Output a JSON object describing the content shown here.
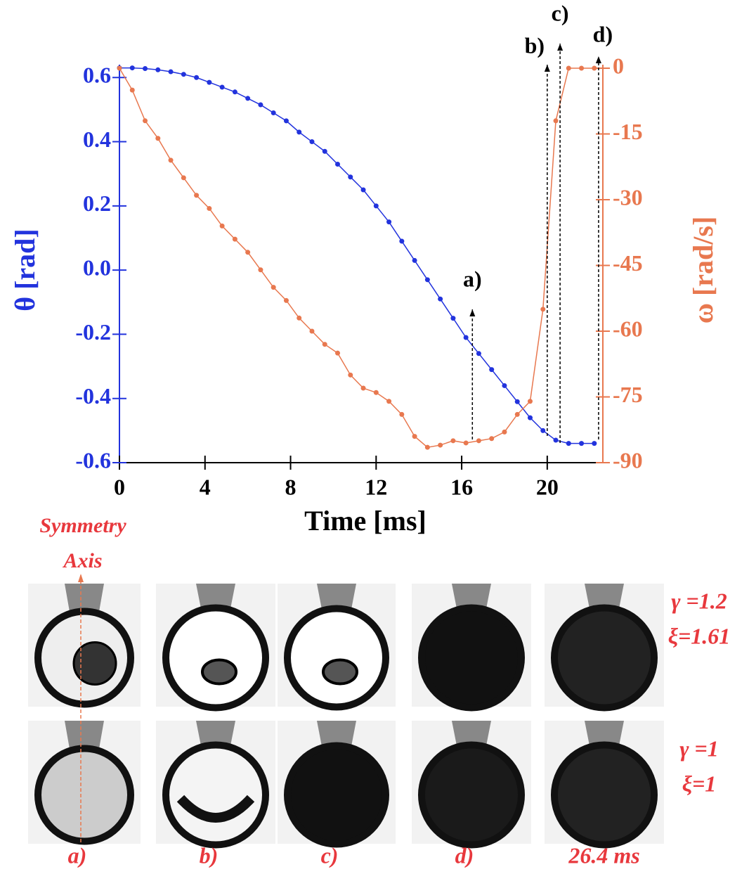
{
  "chart_data": {
    "type": "line",
    "x_label": "Time [ms]",
    "y_label": "θ [rad]",
    "y2_label": "ω [rad/s]",
    "x": [
      0,
      0.6,
      1.2,
      1.8,
      2.4,
      3.0,
      3.6,
      4.2,
      4.8,
      5.4,
      6.0,
      6.6,
      7.2,
      7.8,
      8.4,
      9.0,
      9.6,
      10.2,
      10.8,
      11.4,
      12.0,
      12.6,
      13.2,
      13.8,
      14.4,
      15.0,
      15.6,
      16.2,
      16.8,
      17.4,
      18.0,
      18.6,
      19.2,
      19.8,
      20.4,
      21.0,
      21.6,
      22.2
    ],
    "series": [
      {
        "color": "#2233dd",
        "axis": "y",
        "values": [
          0.63,
          0.63,
          0.628,
          0.624,
          0.618,
          0.61,
          0.6,
          0.585,
          0.57,
          0.555,
          0.535,
          0.515,
          0.49,
          0.465,
          0.43,
          0.4,
          0.37,
          0.33,
          0.29,
          0.25,
          0.2,
          0.15,
          0.09,
          0.03,
          -0.03,
          -0.09,
          -0.15,
          -0.21,
          -0.26,
          -0.31,
          -0.36,
          -0.41,
          -0.46,
          -0.5,
          -0.53,
          -0.54,
          -0.54,
          -0.54
        ]
      },
      {
        "color": "#e8784f",
        "axis": "y2",
        "values": [
          0,
          -5,
          -12,
          -16,
          -21,
          -25,
          -29,
          -32,
          -36,
          -39,
          -42,
          -46,
          -50,
          -53,
          -57,
          -60,
          -63,
          -65,
          -70,
          -73,
          -74,
          -76,
          -79,
          -84,
          -86.5,
          -86,
          -85,
          -85.5,
          -85,
          -84.5,
          -83,
          -79,
          -76,
          -55,
          -12,
          0,
          0,
          0
        ]
      }
    ],
    "xlim": [
      0,
      22.6
    ],
    "xticks": [
      0,
      4,
      8,
      12,
      16,
      20
    ],
    "ylim": [
      -0.6,
      0.64
    ],
    "yticks": [
      -0.6,
      -0.4,
      -0.2,
      {
        "value": 0,
        "label": "0.0"
      },
      0.2,
      0.4,
      0.6
    ],
    "y2lim": [
      -90,
      0.8
    ],
    "y2ticks": [
      -90,
      -75,
      -60,
      -45,
      -30,
      -15,
      0
    ],
    "annotations": [
      {
        "x": 16.5,
        "label": "a)"
      },
      {
        "x": 20.0,
        "label": "b)"
      },
      {
        "x": 20.6,
        "label": "c)"
      },
      {
        "x": 22.4,
        "label": "d)"
      }
    ]
  },
  "photo_panel": {
    "axis_label": [
      "Symmetry",
      "Axis"
    ],
    "rows": [
      {
        "params": [
          "γ =1.2",
          "ξ=1.61"
        ]
      },
      {
        "params": [
          "γ =1",
          "ξ=1"
        ]
      }
    ],
    "column_labels": [
      "a)",
      "b)",
      "c)",
      "d)",
      "26.4 ms"
    ]
  }
}
